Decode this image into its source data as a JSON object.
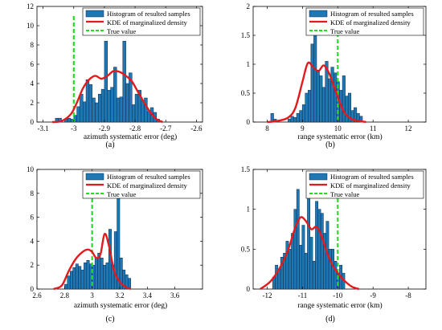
{
  "colors": {
    "bar": "#1f77b4",
    "bar_edge": "#0b2a4a",
    "kde": "#e31a1c",
    "true_value": "#22dd22"
  },
  "legend_labels": [
    "Histogram of resulted samples",
    "KDE of marginalized density",
    "True value"
  ],
  "chart_data": [
    {
      "type": "bar",
      "panel_label": "(a)",
      "xlabel": "azimuth systematic error (deg)",
      "ylabel": "",
      "xlim": [
        -3.12,
        -2.58
      ],
      "ylim": [
        0,
        12
      ],
      "xticks": [
        -3.1,
        -3,
        -2.9,
        -2.8,
        -2.7,
        -2.6
      ],
      "yticks": [
        0,
        2,
        4,
        6,
        8,
        10,
        12
      ],
      "xtick_labels": [
        "-3.1",
        "-3",
        "-2.9",
        "-2.8",
        "-2.7",
        "-2.6"
      ],
      "ytick_labels": [
        "0",
        "2",
        "4",
        "6",
        "8",
        "10",
        "12"
      ],
      "true_value": -3.0,
      "legend": "top-right",
      "hist_range": [
        -3.06,
        -2.72
      ],
      "hist_counts": [
        0.4,
        0.4,
        0.0,
        0.3,
        0.4,
        0.3,
        0.7,
        1.6,
        2.9,
        2.1,
        4.4,
        3.9,
        2.5,
        2.0,
        2.9,
        3.4,
        8.4,
        3.3,
        3.6,
        5.7,
        2.5,
        2.6,
        8.4,
        4.0,
        5.1,
        1.8,
        2.9,
        3.3,
        2.2,
        2.5,
        1.1,
        1.5,
        1.0,
        0.3
      ],
      "kde": {
        "x": [
          -3.07,
          -3.04,
          -3.01,
          -2.99,
          -2.97,
          -2.95,
          -2.93,
          -2.91,
          -2.89,
          -2.87,
          -2.85,
          -2.83,
          -2.81,
          -2.79,
          -2.77,
          -2.75,
          -2.73,
          -2.71
        ],
        "y": [
          0.0,
          0.1,
          0.8,
          2.0,
          3.5,
          4.4,
          4.8,
          4.5,
          4.8,
          5.3,
          5.2,
          4.8,
          4.2,
          3.1,
          2.0,
          1.0,
          0.3,
          0.0
        ]
      }
    },
    {
      "type": "bar",
      "panel_label": "(b)",
      "xlabel": "range systematic error (km)",
      "ylabel": "",
      "xlim": [
        7.6,
        12.5
      ],
      "ylim": [
        0,
        2
      ],
      "xticks": [
        8,
        9,
        10,
        11,
        12
      ],
      "yticks": [
        0,
        0.5,
        1,
        1.5,
        2
      ],
      "xtick_labels": [
        "8",
        "9",
        "10",
        "11",
        "12"
      ],
      "ytick_labels": [
        "0",
        "0.5",
        "1",
        "1.5",
        "2"
      ],
      "true_value": 10.0,
      "legend": "top-right",
      "hist_range": [
        8.1,
        10.7
      ],
      "hist_counts": [
        0.15,
        0.05,
        0.0,
        0.0,
        0.0,
        0.0,
        0.05,
        0.1,
        0.08,
        0.15,
        0.2,
        0.3,
        0.5,
        0.55,
        1.35,
        1.65,
        0.9,
        0.8,
        0.6,
        1.05,
        0.75,
        0.95,
        0.85,
        0.7,
        0.55,
        0.8,
        0.45,
        0.5,
        0.2,
        0.25,
        0.15,
        0.1
      ],
      "kde": {
        "x": [
          8.0,
          8.3,
          8.6,
          8.8,
          9.0,
          9.15,
          9.3,
          9.45,
          9.6,
          9.75,
          9.9,
          10.05,
          10.2,
          10.4,
          10.6,
          10.8
        ],
        "y": [
          0.0,
          0.02,
          0.08,
          0.25,
          0.7,
          1.02,
          0.95,
          0.88,
          0.98,
          0.85,
          0.6,
          0.35,
          0.15,
          0.05,
          0.02,
          0.0
        ]
      }
    },
    {
      "type": "bar",
      "panel_label": "(c)",
      "xlabel": "azimuth systematic error (deg)",
      "ylabel": "",
      "xlim": [
        2.6,
        3.8
      ],
      "ylim": [
        0,
        10
      ],
      "xticks": [
        2.6,
        2.8,
        3,
        3.2,
        3.4,
        3.6
      ],
      "yticks": [
        0,
        2,
        4,
        6,
        8,
        10
      ],
      "xtick_labels": [
        "2.6",
        "2.8",
        "3",
        "3.2",
        "3.4",
        "3.6"
      ],
      "ytick_labels": [
        "0",
        "2",
        "4",
        "6",
        "8",
        "10"
      ],
      "true_value": 3.0,
      "legend": "top-right",
      "hist_range": [
        2.8,
        3.28
      ],
      "hist_counts": [
        0.4,
        1.1,
        1.5,
        1.8,
        2.1,
        1.9,
        1.6,
        2.2,
        2.4,
        2.1,
        2.0,
        2.6,
        3.0,
        2.6,
        2.0,
        2.2,
        5.0,
        2.0,
        4.8,
        9.4,
        2.6,
        1.6,
        1.2,
        0.9
      ],
      "kde": {
        "x": [
          2.72,
          2.78,
          2.83,
          2.88,
          2.93,
          2.97,
          3.0,
          3.03,
          3.06,
          3.09,
          3.12,
          3.16,
          3.2,
          3.24,
          3.28
        ],
        "y": [
          0.0,
          0.3,
          1.5,
          2.5,
          3.1,
          3.3,
          3.1,
          2.6,
          2.9,
          4.6,
          3.7,
          1.5,
          0.6,
          0.2,
          0.0
        ]
      }
    },
    {
      "type": "bar",
      "panel_label": "(d)",
      "xlabel": "range systematic error (km)",
      "ylabel": "",
      "xlim": [
        -12.4,
        -7.5
      ],
      "ylim": [
        0,
        1.5
      ],
      "xticks": [
        -12,
        -11,
        -10,
        -9,
        -8
      ],
      "yticks": [
        0,
        0.5,
        1,
        1.5
      ],
      "xtick_labels": [
        "-12",
        "-11",
        "-10",
        "-9",
        "-8"
      ],
      "ytick_labels": [
        "0",
        "0.5",
        "1",
        "1.5"
      ],
      "true_value": -10.0,
      "legend": "top-right",
      "hist_range": [
        -11.85,
        -9.8
      ],
      "hist_counts": [
        0.15,
        0.3,
        0.25,
        0.4,
        0.45,
        0.6,
        0.5,
        0.7,
        1.0,
        1.25,
        0.55,
        0.8,
        0.45,
        1.45,
        0.65,
        0.35,
        1.1,
        1.0,
        0.95,
        0.7,
        0.85,
        0.5,
        0.5,
        0.35,
        0.2,
        0.3,
        0.2
      ],
      "kde": {
        "x": [
          -12.2,
          -11.9,
          -11.6,
          -11.4,
          -11.2,
          -11.05,
          -10.9,
          -10.75,
          -10.6,
          -10.45,
          -10.3,
          -10.15,
          -10.0,
          -9.8,
          -9.6,
          -9.4
        ],
        "y": [
          0.0,
          0.1,
          0.3,
          0.5,
          0.78,
          0.9,
          0.85,
          0.75,
          0.78,
          0.65,
          0.45,
          0.3,
          0.2,
          0.1,
          0.03,
          0.0
        ]
      }
    }
  ]
}
